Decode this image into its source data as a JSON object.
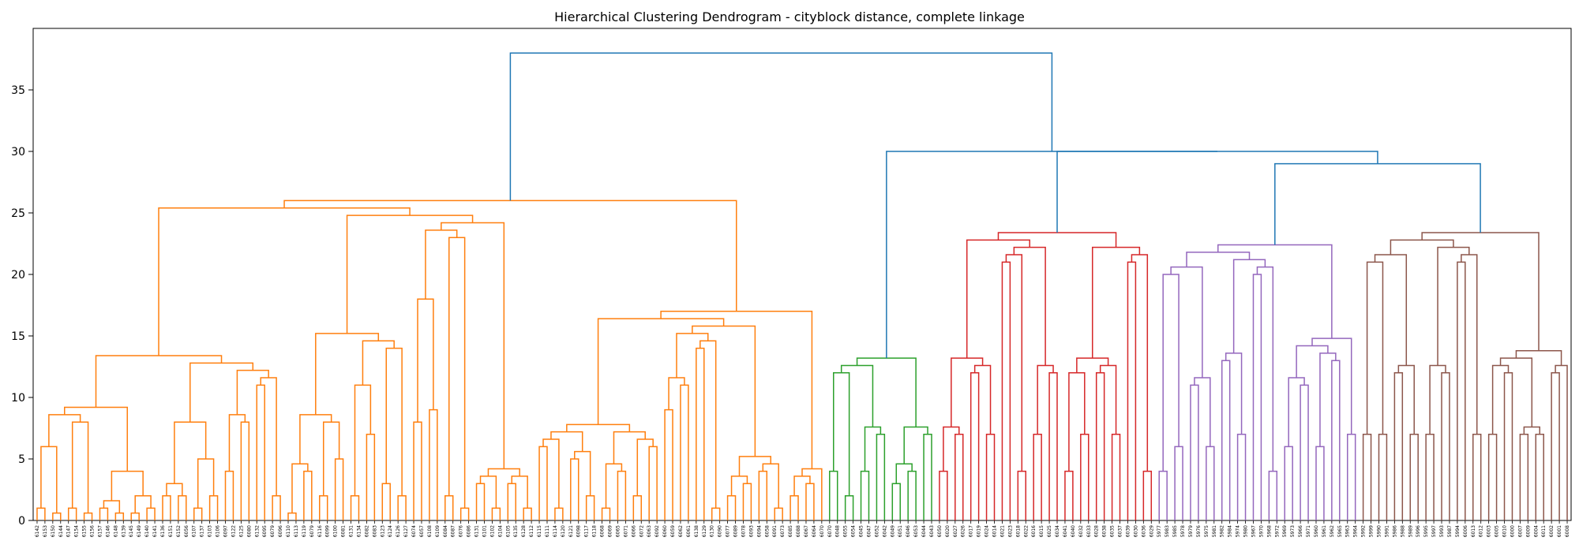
{
  "chart_data": {
    "type": "dendrogram",
    "title": "Hierarchical Clustering Dendrogram - cityblock distance, complete linkage",
    "xlabel": "",
    "ylabel": "",
    "ylim": [
      0,
      40
    ],
    "yticks": [
      0,
      5,
      10,
      15,
      20,
      25,
      30,
      35
    ],
    "grid": false,
    "colors": {
      "orange": "#ff7f0e",
      "green": "#2ca02c",
      "red": "#d62728",
      "purple": "#9467bd",
      "brown": "#8c564b",
      "above_threshold": "#1f77b4"
    },
    "clusters": [
      {
        "color": "orange",
        "leaves": [
          "6142",
          "6153",
          "6150",
          "6144",
          "6147",
          "6154",
          "6155",
          "6156",
          "6157",
          "6146",
          "6148",
          "6139",
          "6145",
          "6149",
          "6140",
          "6141",
          "6136",
          "6151",
          "6152",
          "6056",
          "6107",
          "6137",
          "6103",
          "6106",
          "6097",
          "6122",
          "6125",
          "6080",
          "6132",
          "6095",
          "6079",
          "6096",
          "6110",
          "6113",
          "6119",
          "6079",
          "6116",
          "6099",
          "6100",
          "6081",
          "6131",
          "6134",
          "6082",
          "6083",
          "6123",
          "6124",
          "6126",
          "6127",
          "6074",
          "6057",
          "6108",
          "6109",
          "6084",
          "6087",
          "6076",
          "6086",
          "6131",
          "6101",
          "6102",
          "6104",
          "6105",
          "6135",
          "6128",
          "6112",
          "6115",
          "6111",
          "6114",
          "6120",
          "6121",
          "6098",
          "6117",
          "6118",
          "6068",
          "6069",
          "6065",
          "6071",
          "6066",
          "6072",
          "6063",
          "6092",
          "6060",
          "6059",
          "6062",
          "6061",
          "6138",
          "6129",
          "6130",
          "6090",
          "6077",
          "6089",
          "6078",
          "6093",
          "6094",
          "6058",
          "6091",
          "6073",
          "6085",
          "6088",
          "6067",
          "6064",
          "6070"
        ],
        "merges": [
          [
            1,
            2,
            1
          ],
          [
            3,
            4,
            0
          ],
          [
            5,
            6,
            1
          ],
          [
            7,
            8,
            0
          ],
          [
            9,
            10,
            1
          ],
          [
            11,
            12,
            0
          ],
          [
            13,
            14,
            0
          ],
          [
            15,
            16,
            1
          ],
          [
            17,
            18,
            2
          ],
          [
            19,
            20,
            2
          ],
          [
            21,
            22,
            1
          ],
          [
            23,
            24,
            2
          ],
          [
            25,
            26,
            4
          ],
          [
            27,
            28,
            8
          ],
          [
            29,
            30,
            11
          ],
          [
            31,
            32,
            2
          ],
          [
            33,
            34,
            0
          ],
          [
            35,
            36,
            4
          ],
          [
            37,
            38,
            2
          ],
          [
            39,
            40,
            5
          ],
          [
            41,
            42,
            2
          ],
          [
            43,
            44,
            7
          ],
          [
            45,
            46,
            3
          ],
          [
            47,
            48,
            2
          ],
          [
            49,
            50,
            8
          ],
          [
            51,
            52,
            9
          ],
          [
            53,
            54,
            2
          ],
          [
            55,
            56,
            1
          ],
          [
            57,
            58,
            3
          ],
          [
            59,
            60,
            1
          ],
          [
            61,
            62,
            3
          ],
          [
            63,
            64,
            1
          ],
          [
            65,
            66,
            6
          ],
          [
            67,
            68,
            1
          ],
          [
            69,
            70,
            5
          ],
          [
            71,
            72,
            2
          ],
          [
            73,
            74,
            1
          ],
          [
            75,
            76,
            4
          ],
          [
            77,
            78,
            2
          ],
          [
            79,
            80,
            6
          ],
          [
            81,
            82,
            9
          ],
          [
            83,
            84,
            11
          ],
          [
            85,
            86,
            14
          ],
          [
            87,
            88,
            1
          ],
          [
            89,
            90,
            2
          ],
          [
            91,
            92,
            3
          ],
          [
            93,
            94,
            4
          ],
          [
            95,
            96,
            1
          ],
          [
            97,
            98,
            2
          ],
          [
            99,
            100,
            3
          ],
          [
            101,
            102,
            6
          ],
          [
            103,
            104,
            8
          ],
          [
            105,
            106,
            1
          ],
          [
            107,
            108,
            2
          ],
          [
            109,
            110,
            3
          ],
          [
            111,
            112,
            5
          ],
          [
            113,
            114,
            1
          ],
          [
            115,
            116,
            2
          ],
          [
            117,
            118,
            4
          ],
          [
            119,
            120,
            8
          ],
          [
            121,
            122,
            11
          ],
          [
            123,
            124,
            14
          ],
          [
            125,
            126,
            18
          ],
          [
            127,
            128,
            23
          ]
        ]
      },
      {
        "color": "green",
        "leaves": [
          "6070",
          "6048",
          "6055",
          "6054",
          "6045",
          "6047",
          "6052",
          "6042",
          "6049",
          "6051",
          "6046",
          "6053",
          "6044",
          "6043"
        ],
        "merges": [
          [
            1,
            2,
            4
          ],
          [
            3,
            4,
            2
          ],
          [
            5,
            6,
            4
          ],
          [
            7,
            8,
            7
          ],
          [
            9,
            10,
            3
          ],
          [
            11,
            12,
            4
          ],
          [
            13,
            14,
            7
          ],
          [
            15,
            16,
            12
          ]
        ]
      },
      {
        "color": "red",
        "leaves": [
          "6050",
          "6020",
          "6027",
          "6026",
          "6017",
          "6019",
          "6024",
          "6014",
          "6021",
          "6023",
          "6018",
          "6022",
          "6016",
          "6015",
          "6025",
          "6034",
          "6041",
          "6040",
          "6032",
          "6033",
          "6028",
          "6038",
          "6035",
          "6037",
          "6039",
          "6030",
          "6036",
          "6029"
        ],
        "merges": [
          [
            1,
            2,
            4
          ],
          [
            3,
            4,
            7
          ],
          [
            5,
            6,
            12
          ],
          [
            7,
            8,
            7
          ],
          [
            9,
            10,
            21
          ],
          [
            11,
            12,
            4
          ],
          [
            13,
            14,
            7
          ],
          [
            15,
            16,
            12
          ]
        ]
      },
      {
        "color": "purple",
        "leaves": [
          "5977",
          "5983",
          "5985",
          "5978",
          "5979",
          "5976",
          "5975",
          "5981",
          "5982",
          "5984",
          "5974",
          "5980",
          "5967",
          "5970",
          "5968",
          "5972",
          "5969",
          "5973",
          "5966",
          "5971",
          "5960",
          "5961",
          "5962",
          "5965",
          "5963",
          "5964"
        ],
        "merges": [
          [
            1,
            2,
            4
          ],
          [
            3,
            4,
            6
          ],
          [
            5,
            6,
            11
          ],
          [
            7,
            8,
            6
          ],
          [
            9,
            10,
            13
          ],
          [
            11,
            12,
            7
          ],
          [
            13,
            14,
            20
          ]
        ]
      },
      {
        "color": "brown",
        "leaves": [
          "5992",
          "5999",
          "5990",
          "5991",
          "5986",
          "5988",
          "5989",
          "5996",
          "5995",
          "5997",
          "5993",
          "5987",
          "5994",
          "6006",
          "6013",
          "6012",
          "6003",
          "6005",
          "6010",
          "6000",
          "6007",
          "6009",
          "6004",
          "6011",
          "6002",
          "6001",
          "6008"
        ],
        "merges": [
          [
            1,
            2,
            7
          ],
          [
            3,
            4,
            7
          ],
          [
            5,
            6,
            12
          ],
          [
            7,
            8,
            7
          ],
          [
            9,
            10,
            7
          ],
          [
            11,
            12,
            12
          ],
          [
            13,
            14,
            21
          ]
        ]
      }
    ],
    "top_links": [
      {
        "left": "orange",
        "right": "green+red+purple+brown",
        "height": 38
      },
      {
        "left": "green",
        "right": "red+purple+brown",
        "height": 30
      },
      {
        "left": "red",
        "right": "purple+brown",
        "height": 30
      },
      {
        "left": "purple",
        "right": "brown",
        "height": 29
      }
    ]
  }
}
